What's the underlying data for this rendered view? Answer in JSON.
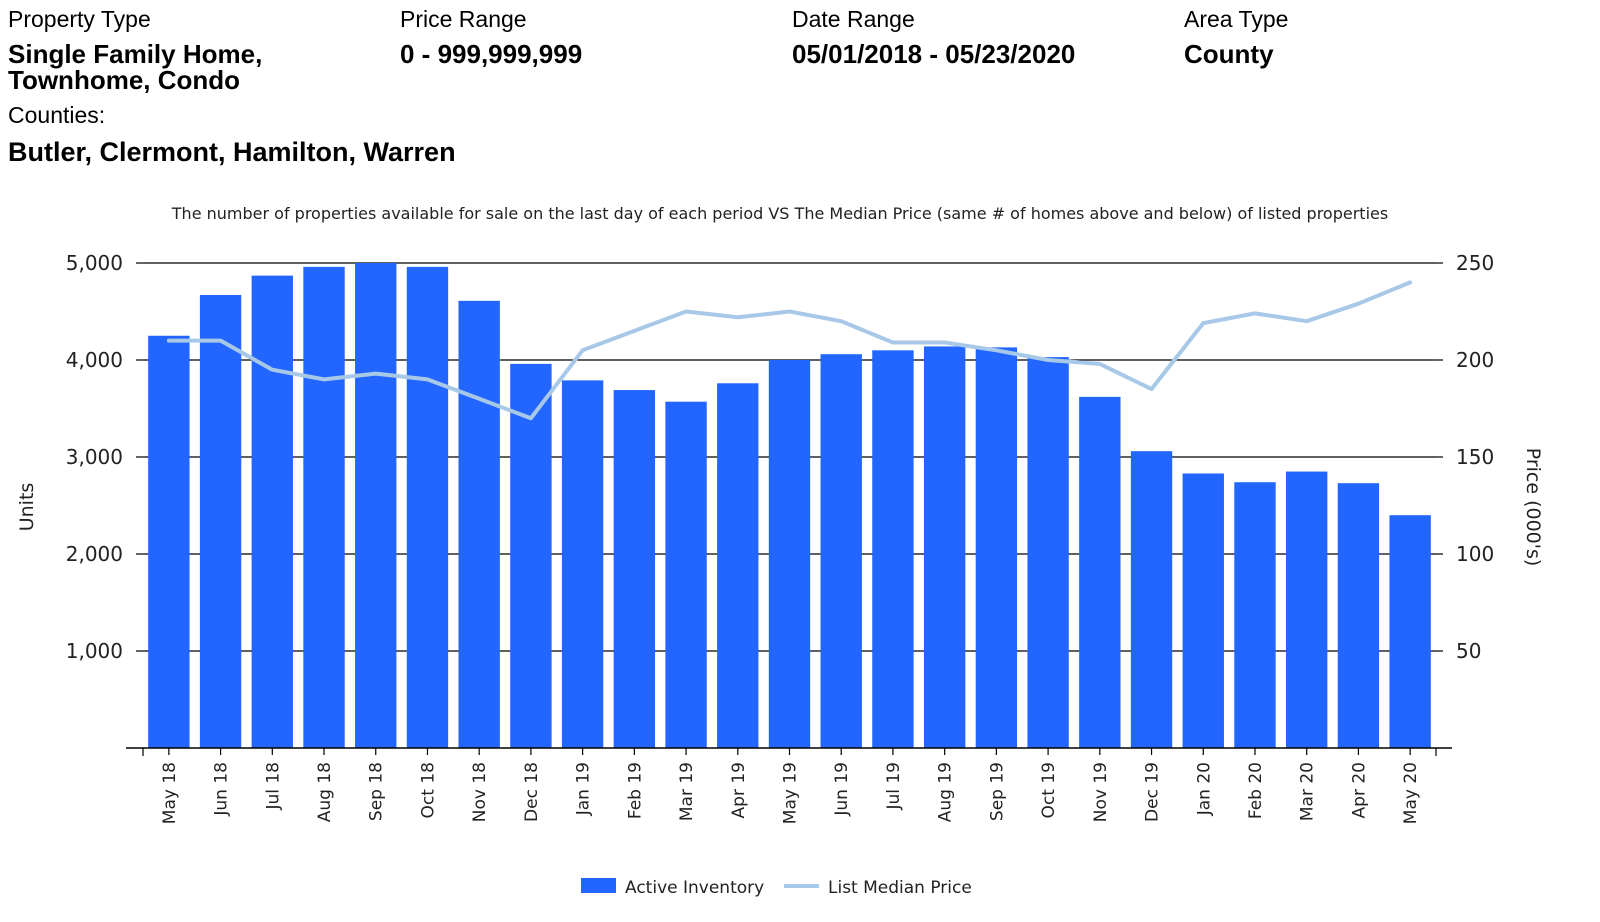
{
  "header": {
    "property_type_label": "Property Type",
    "property_type_line1": "Single Family Home,",
    "property_type_line2": "Townhome, Condo",
    "price_range_label": "Price Range",
    "price_range_value": "0 - 999,999,999",
    "date_range_label": "Date Range",
    "date_range_value": "05/01/2018 - 05/23/2020",
    "area_type_label": "Area Type",
    "area_type_value": "County",
    "counties_label": "Counties:",
    "counties_value": "Butler, Clermont, Hamilton, Warren"
  },
  "colors": {
    "bar": "#2266ff",
    "line": "#a8c8e8",
    "grid": "#000000"
  },
  "chart_data": {
    "type": "bar",
    "subtitle": "The number of properties available for sale on the last day of each period VS The Median Price (same # of homes above and below) of listed properties",
    "ylabel": "Units",
    "y2label": "Price (000's)",
    "ylim": [
      0,
      5000
    ],
    "y2lim": [
      0,
      250
    ],
    "yticks": [
      "1,000",
      "2,000",
      "3,000",
      "4,000",
      "5,000"
    ],
    "y2ticks": [
      "50",
      "100",
      "150",
      "200",
      "250"
    ],
    "categories": [
      "May 18",
      "Jun 18",
      "Jul 18",
      "Aug 18",
      "Sep 18",
      "Oct 18",
      "Nov 18",
      "Dec 18",
      "Jan 19",
      "Feb 19",
      "Mar 19",
      "Apr 19",
      "May 19",
      "Jun 19",
      "Jul 19",
      "Aug 19",
      "Sep 19",
      "Oct 19",
      "Nov 19",
      "Dec 19",
      "Jan 20",
      "Feb 20",
      "Mar 20",
      "Apr 20",
      "May 20"
    ],
    "series": [
      {
        "name": "Active Inventory",
        "type": "bar",
        "axis": "left",
        "values": [
          4250,
          4670,
          4870,
          4960,
          5000,
          4960,
          4610,
          3960,
          3790,
          3690,
          3570,
          3760,
          4000,
          4060,
          4100,
          4140,
          4130,
          4030,
          3620,
          3060,
          2830,
          2740,
          2850,
          2730,
          2400
        ]
      },
      {
        "name": "List Median Price",
        "type": "line",
        "axis": "right",
        "values": [
          210,
          210,
          195,
          190,
          193,
          190,
          180,
          170,
          205,
          215,
          225,
          222,
          225,
          220,
          209,
          209,
          205,
          200,
          198,
          185,
          219,
          224,
          220,
          229,
          240
        ]
      }
    ],
    "legend_position": "bottom-center",
    "grid": true
  }
}
